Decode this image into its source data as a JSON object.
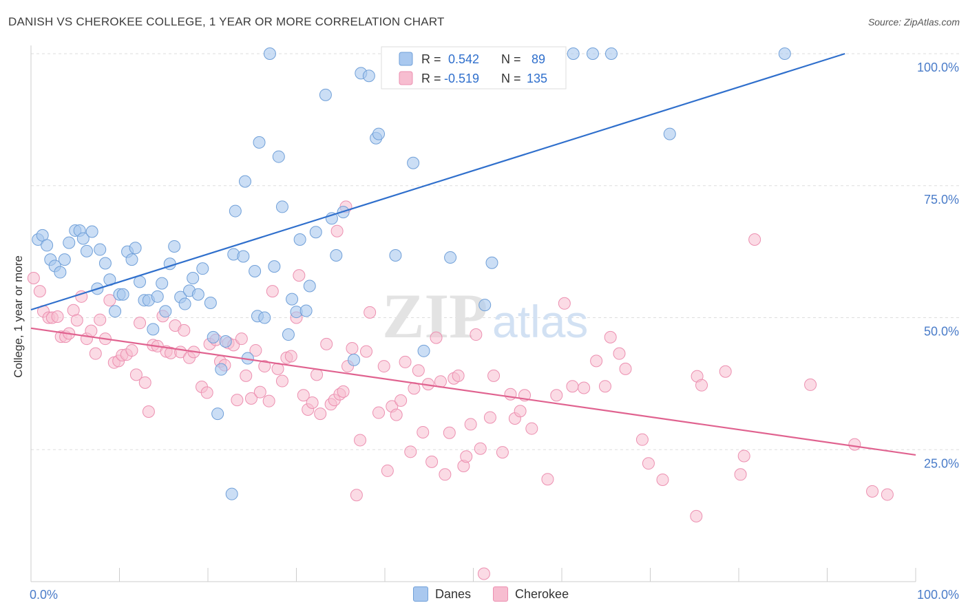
{
  "title": "DANISH VS CHEROKEE COLLEGE, 1 YEAR OR MORE CORRELATION CHART",
  "source": "Source: ZipAtlas.com",
  "watermark": {
    "bold": "ZIP",
    "light": "atlas"
  },
  "colors": {
    "danes_fill": "#a9c8ef",
    "danes_stroke": "#6f9fd8",
    "danes_line": "#2f6fcc",
    "cherokee_fill": "#f7bdd0",
    "cherokee_stroke": "#ec8fb0",
    "cherokee_line": "#e0628f",
    "axis_text": "#4a7cc9",
    "grid": "#dddddd"
  },
  "legend_stats": [
    {
      "series": "Danes",
      "r_label": "R =",
      "r_value": "0.542",
      "n_label": "N =",
      "n_value": "89"
    },
    {
      "series": "Cherokee",
      "r_label": "R =",
      "r_value": "-0.519",
      "n_label": "N =",
      "n_value": "135"
    }
  ],
  "chart_data": {
    "type": "scatter",
    "title": "DANISH VS CHEROKEE COLLEGE, 1 YEAR OR MORE CORRELATION CHART",
    "xlabel": "",
    "ylabel": "College, 1 year or more",
    "xlim": [
      0,
      100
    ],
    "ylim": [
      0,
      100
    ],
    "x_tick_labels": [
      "0.0%",
      "100.0%"
    ],
    "y_tick_labels": [
      {
        "value": 25,
        "label": "25.0%"
      },
      {
        "value": 50,
        "label": "50.0%"
      },
      {
        "value": 75,
        "label": "75.0%"
      },
      {
        "value": 100,
        "label": "100.0%"
      }
    ],
    "grid": true,
    "legend_position": "top-center",
    "series": [
      {
        "name": "Danes",
        "trend": {
          "x": [
            0,
            92
          ],
          "y": [
            51.5,
            100
          ]
        },
        "points": [
          [
            0.8,
            64.8
          ],
          [
            1.3,
            65.6
          ],
          [
            1.8,
            63.7
          ],
          [
            2.2,
            61
          ],
          [
            2.7,
            59.8
          ],
          [
            3.3,
            58.6
          ],
          [
            3.8,
            61
          ],
          [
            4.3,
            64.2
          ],
          [
            5,
            66.5
          ],
          [
            5.5,
            66.5
          ],
          [
            5.9,
            65
          ],
          [
            6.3,
            62.6
          ],
          [
            6.9,
            66.3
          ],
          [
            7.5,
            55.5
          ],
          [
            7.8,
            62.9
          ],
          [
            8.4,
            60.3
          ],
          [
            8.9,
            57.2
          ],
          [
            9.5,
            51.2
          ],
          [
            10,
            54.4
          ],
          [
            10.4,
            54.4
          ],
          [
            10.9,
            62.5
          ],
          [
            11.4,
            61
          ],
          [
            11.8,
            63.2
          ],
          [
            12.3,
            56.8
          ],
          [
            12.8,
            53.3
          ],
          [
            13.3,
            53.3
          ],
          [
            13.8,
            47.8
          ],
          [
            14.3,
            54
          ],
          [
            14.8,
            56.5
          ],
          [
            15.2,
            51.2
          ],
          [
            15.7,
            60.2
          ],
          [
            16.2,
            63.5
          ],
          [
            16.9,
            53.9
          ],
          [
            17.4,
            52.6
          ],
          [
            17.9,
            55.1
          ],
          [
            18.3,
            57.5
          ],
          [
            18.9,
            54.4
          ],
          [
            19.4,
            59.3
          ],
          [
            20.3,
            52.8
          ],
          [
            20.6,
            46.3
          ],
          [
            21.1,
            31.8
          ],
          [
            21.5,
            40.2
          ],
          [
            22,
            45.5
          ],
          [
            22.7,
            16.6
          ],
          [
            22.9,
            62
          ],
          [
            23.1,
            70.2
          ],
          [
            24,
            61.6
          ],
          [
            24.2,
            75.8
          ],
          [
            24.5,
            42.3
          ],
          [
            25.3,
            58.8
          ],
          [
            25.6,
            50.3
          ],
          [
            25.8,
            83.2
          ],
          [
            26.4,
            50
          ],
          [
            27,
            100
          ],
          [
            27.5,
            59.7
          ],
          [
            28,
            80.5
          ],
          [
            28.4,
            71
          ],
          [
            29.1,
            46.8
          ],
          [
            29.5,
            53.5
          ],
          [
            30,
            51.1
          ],
          [
            30.4,
            64.8
          ],
          [
            31.1,
            51.3
          ],
          [
            31.5,
            56
          ],
          [
            32.2,
            66.2
          ],
          [
            33.3,
            92.2
          ],
          [
            34,
            68.8
          ],
          [
            34.5,
            61.8
          ],
          [
            35.3,
            70
          ],
          [
            36.5,
            42
          ],
          [
            37.3,
            96.3
          ],
          [
            38.2,
            95.8
          ],
          [
            39,
            84
          ],
          [
            39.3,
            84.8
          ],
          [
            41.2,
            61.8
          ],
          [
            43.2,
            79.3
          ],
          [
            44.4,
            43.7
          ],
          [
            47.4,
            61.4
          ],
          [
            51.3,
            52.4
          ],
          [
            52.1,
            60.4
          ],
          [
            56.4,
            100
          ],
          [
            61.3,
            100
          ],
          [
            63.5,
            100
          ],
          [
            65.6,
            100
          ],
          [
            72.2,
            84.8
          ],
          [
            85.2,
            100
          ],
          [
            44.8,
            100
          ],
          [
            43.9,
            100
          ],
          [
            42.7,
            100
          ],
          [
            43.4,
            100
          ]
        ]
      },
      {
        "name": "Cherokee",
        "trend": {
          "x": [
            0,
            100
          ],
          "y": [
            48,
            24
          ]
        },
        "points": [
          [
            0.3,
            57.5
          ],
          [
            1,
            55
          ],
          [
            1.4,
            51.2
          ],
          [
            2,
            50
          ],
          [
            2.4,
            50
          ],
          [
            3,
            50.2
          ],
          [
            3.4,
            46.4
          ],
          [
            3.9,
            46.4
          ],
          [
            4.3,
            47
          ],
          [
            4.8,
            51.4
          ],
          [
            5.2,
            49.5
          ],
          [
            5.7,
            54
          ],
          [
            6.3,
            46
          ],
          [
            6.8,
            47.5
          ],
          [
            7.3,
            43.2
          ],
          [
            7.8,
            49.6
          ],
          [
            8.4,
            46
          ],
          [
            8.9,
            53.3
          ],
          [
            9.4,
            41.5
          ],
          [
            9.9,
            41.8
          ],
          [
            10.3,
            42.9
          ],
          [
            10.8,
            43
          ],
          [
            11.4,
            43.8
          ],
          [
            11.9,
            39.2
          ],
          [
            12.3,
            49
          ],
          [
            12.9,
            37.7
          ],
          [
            13.3,
            32.2
          ],
          [
            13.8,
            44.8
          ],
          [
            14.3,
            44.6
          ],
          [
            14.9,
            50.3
          ],
          [
            15.3,
            43.6
          ],
          [
            15.8,
            43.3
          ],
          [
            16.3,
            48.5
          ],
          [
            16.9,
            43.5
          ],
          [
            17.3,
            47.6
          ],
          [
            17.9,
            42.4
          ],
          [
            18.4,
            43.5
          ],
          [
            19.3,
            36.9
          ],
          [
            19.9,
            35.8
          ],
          [
            20.2,
            45
          ],
          [
            20.9,
            45.8
          ],
          [
            21.4,
            41.7
          ],
          [
            21.9,
            41
          ],
          [
            22.3,
            45.2
          ],
          [
            22.9,
            44.8
          ],
          [
            23.3,
            34.4
          ],
          [
            23.8,
            46
          ],
          [
            24.3,
            39
          ],
          [
            24.9,
            34.7
          ],
          [
            25.4,
            43.8
          ],
          [
            25.9,
            35.9
          ],
          [
            26.4,
            40.8
          ],
          [
            26.9,
            34.2
          ],
          [
            27.3,
            55
          ],
          [
            27.9,
            40.3
          ],
          [
            28.4,
            38
          ],
          [
            28.9,
            42.4
          ],
          [
            29.4,
            42.7
          ],
          [
            30,
            50
          ],
          [
            30.3,
            58
          ],
          [
            30.8,
            35.3
          ],
          [
            31.3,
            32.6
          ],
          [
            31.8,
            33.9
          ],
          [
            32.3,
            39.2
          ],
          [
            32.7,
            31.8
          ],
          [
            33.4,
            45
          ],
          [
            33.9,
            33.6
          ],
          [
            34.3,
            34.4
          ],
          [
            34.9,
            35.5
          ],
          [
            35.3,
            36
          ],
          [
            35.8,
            40.8
          ],
          [
            36.3,
            44.2
          ],
          [
            36.8,
            16.4
          ],
          [
            37.2,
            26.8
          ],
          [
            37.9,
            43.6
          ],
          [
            38.3,
            51
          ],
          [
            39.3,
            32
          ],
          [
            39.9,
            40.8
          ],
          [
            40.3,
            21
          ],
          [
            40.8,
            33.2
          ],
          [
            41.3,
            31.6
          ],
          [
            41.8,
            34.3
          ],
          [
            42.3,
            41.6
          ],
          [
            42.9,
            24.6
          ],
          [
            43.3,
            36.6
          ],
          [
            43.8,
            40
          ],
          [
            44.3,
            28.3
          ],
          [
            44.9,
            37.4
          ],
          [
            45.3,
            22.7
          ],
          [
            45.8,
            46.2
          ],
          [
            46.3,
            37.9
          ],
          [
            46.8,
            20.3
          ],
          [
            47.3,
            28.2
          ],
          [
            47.8,
            38.5
          ],
          [
            48.3,
            39
          ],
          [
            48.9,
            21.9
          ],
          [
            49.2,
            23.7
          ],
          [
            49.7,
            29.8
          ],
          [
            50.3,
            46.8
          ],
          [
            50.8,
            25.2
          ],
          [
            51.2,
            1.5
          ],
          [
            51.9,
            31.1
          ],
          [
            52.3,
            39
          ],
          [
            53.3,
            24.5
          ],
          [
            54.2,
            35.5
          ],
          [
            54.7,
            30.9
          ],
          [
            55.3,
            32.3
          ],
          [
            55.8,
            35.3
          ],
          [
            56.6,
            29
          ],
          [
            58.4,
            19.4
          ],
          [
            59.4,
            35.3
          ],
          [
            60.3,
            52.7
          ],
          [
            61.2,
            37
          ],
          [
            62.5,
            36.7
          ],
          [
            63.9,
            41.8
          ],
          [
            64.9,
            37
          ],
          [
            65.5,
            46.3
          ],
          [
            66.5,
            43.2
          ],
          [
            67.2,
            40.3
          ],
          [
            69.1,
            26.9
          ],
          [
            69.8,
            22.4
          ],
          [
            71.4,
            19.3
          ],
          [
            75.2,
            12.4
          ],
          [
            75.3,
            38.9
          ],
          [
            75.8,
            37.2
          ],
          [
            78.5,
            39.8
          ],
          [
            80.2,
            20.3
          ],
          [
            80.6,
            23.8
          ],
          [
            81.8,
            64.8
          ],
          [
            96.8,
            16.5
          ],
          [
            34.6,
            66.4
          ],
          [
            35.6,
            71
          ],
          [
            95.1,
            17.1
          ],
          [
            88.1,
            37.3
          ],
          [
            93.1,
            26
          ]
        ]
      }
    ]
  }
}
